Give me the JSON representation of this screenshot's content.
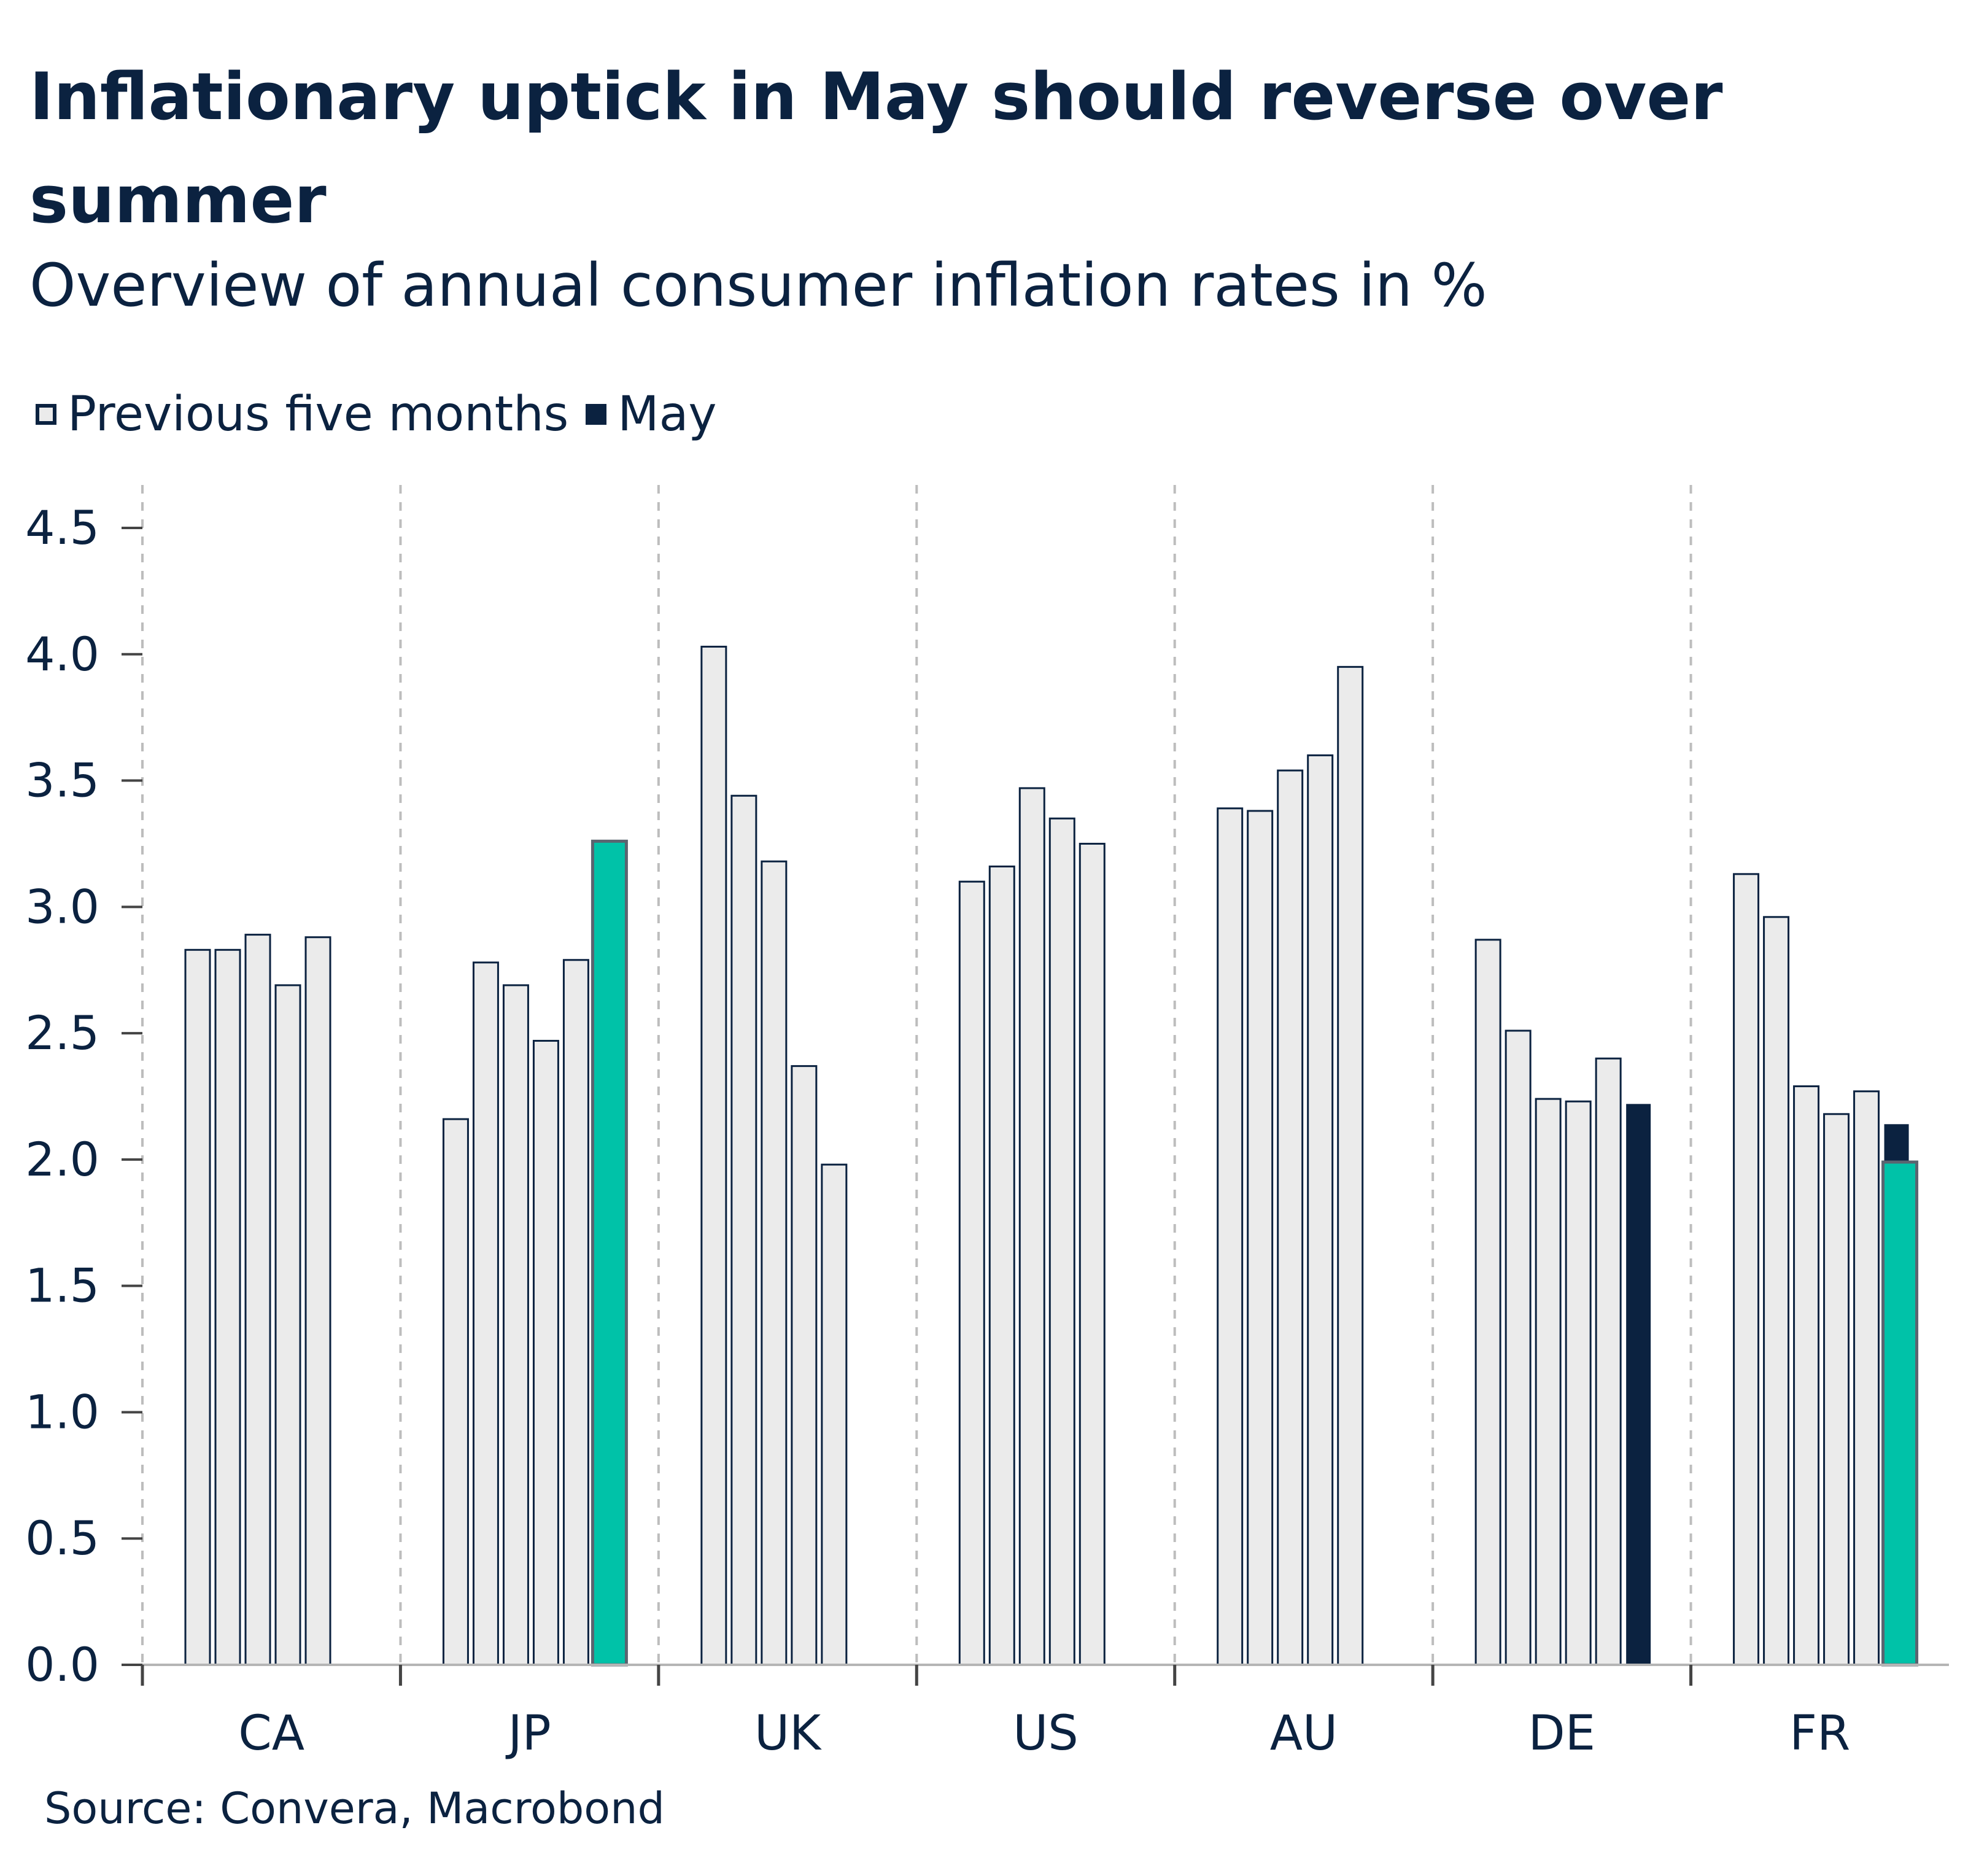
{
  "title": "Inflationary uptick in May should reverse over summer",
  "subtitle": "Overview of annual consumer inflation rates in %",
  "legend": {
    "previous_label": "Previous five months",
    "may_label": "May"
  },
  "source": "Source: Convera, Macrobond",
  "colors": {
    "previous_fill": "#ebebeb",
    "previous_stroke": "#0b2240",
    "may": "#0b2240",
    "highlight": "#00c2a8",
    "highlight_stroke": "#5a6470",
    "grid_divider": "#bdbdbd",
    "text": "#0b2240"
  },
  "chart_data": {
    "type": "bar",
    "ylim": [
      0,
      4.5
    ],
    "yticks": [
      "0.0",
      "0.5",
      "1.0",
      "1.5",
      "2.0",
      "2.5",
      "3.0",
      "3.5",
      "4.0",
      "4.5"
    ],
    "ytick_values": [
      0,
      0.5,
      1.0,
      1.5,
      2.0,
      2.5,
      3.0,
      3.5,
      4.0,
      4.5
    ],
    "categories": [
      "CA",
      "JP",
      "UK",
      "US",
      "AU",
      "DE",
      "FR"
    ],
    "legend_position": "top-left",
    "group_dividers": "dashed",
    "groups": [
      {
        "country": "CA",
        "previous": [
          2.83,
          2.83,
          2.89,
          2.69,
          2.88
        ],
        "may": null,
        "highlight": null
      },
      {
        "country": "JP",
        "previous": [
          2.16,
          2.78,
          2.69,
          2.47,
          2.79
        ],
        "may": null,
        "highlight": 3.26
      },
      {
        "country": "UK",
        "previous": [
          4.03,
          3.44,
          3.18,
          2.37,
          1.98
        ],
        "may": null,
        "highlight": null
      },
      {
        "country": "US",
        "previous": [
          3.1,
          3.16,
          3.47,
          3.35,
          3.25
        ],
        "may": null,
        "highlight": null
      },
      {
        "country": "AU",
        "previous": [
          3.39,
          3.38,
          3.54,
          3.6,
          3.95
        ],
        "may": null,
        "highlight": null
      },
      {
        "country": "DE",
        "previous": [
          2.87,
          2.51,
          2.24,
          2.23,
          2.4
        ],
        "may": 2.22,
        "highlight": null
      },
      {
        "country": "FR",
        "previous": [
          3.13,
          2.96,
          2.29,
          2.18,
          2.27
        ],
        "may": 2.14,
        "highlight": 1.99
      }
    ]
  }
}
